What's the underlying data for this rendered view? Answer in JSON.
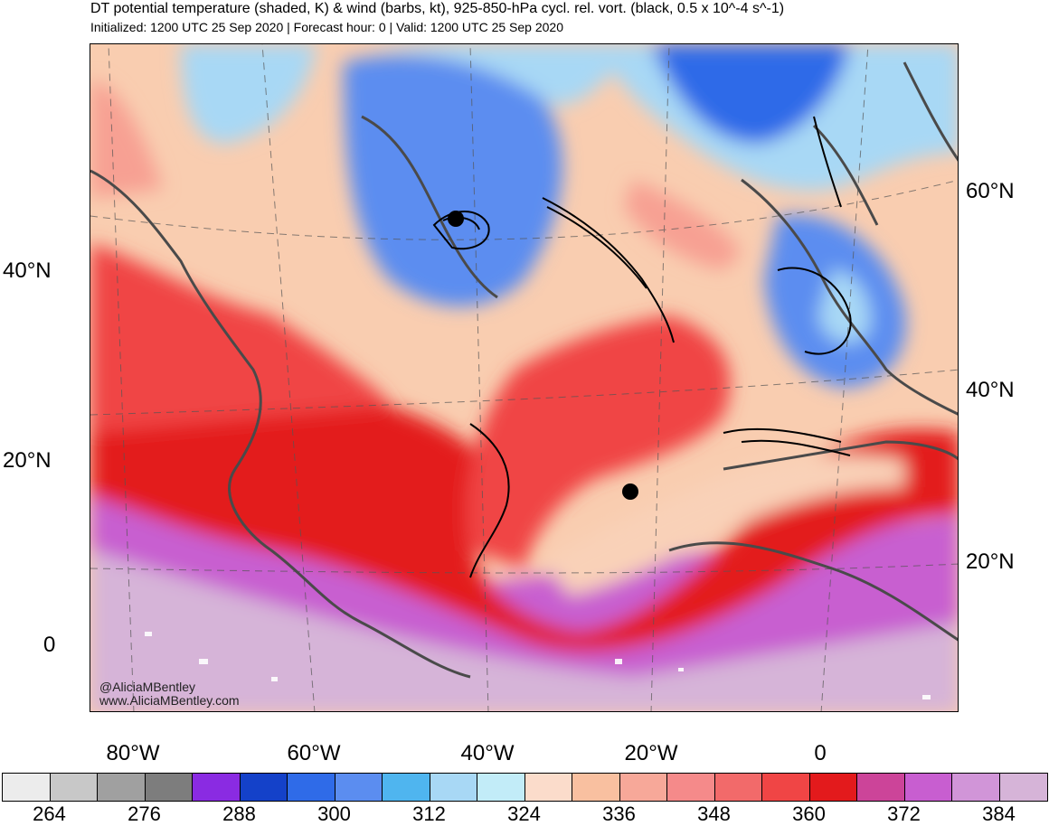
{
  "header": {
    "title": "DT potential temperature (shaded, K) & wind (barbs, kt), 925-850-hPa cycl. rel. vort. (black, 0.5 x 10^-4 s^-1)",
    "subtitle": "Initialized: 1200 UTC 25 Sep 2020 | Forecast hour: 0 | Valid: 1200 UTC 25 Sep 2020"
  },
  "map": {
    "lat_labels_left": [
      "40°N",
      "20°N",
      "0"
    ],
    "lat_labels_right": [
      "60°N",
      "40°N",
      "20°N"
    ],
    "lon_labels": [
      "80°W",
      "60°W",
      "40°W",
      "20°W",
      "0"
    ],
    "credit_handle": "@AliciaMBentley",
    "credit_site": "www.AliciaMBentley.com",
    "colors": {
      "cold_blue": "#5b8df0",
      "pale_blue": "#a8d8f5",
      "peach": "#f9cdb0",
      "salmon": "#f7a093",
      "red": "#f04545",
      "deep_red": "#e31a1c",
      "magenta": "#c85ed0",
      "lavender": "#d6b4d8"
    }
  },
  "colorbar": {
    "colors": [
      "#ececec",
      "#c8c8c8",
      "#a0a0a0",
      "#7d7d7d",
      "#8a2be2",
      "#1441c9",
      "#2f6be8",
      "#5b8df0",
      "#4fb5ef",
      "#a8d8f5",
      "#c2ecf8",
      "#fbdccb",
      "#f9c0a0",
      "#f7a899",
      "#f58a8a",
      "#f26a6a",
      "#f04545",
      "#e31a1c",
      "#cc4499",
      "#c85ed0",
      "#d195d8",
      "#d6b4d8"
    ],
    "labels": [
      "264",
      "276",
      "288",
      "300",
      "312",
      "324",
      "336",
      "348",
      "360",
      "372",
      "384"
    ]
  }
}
